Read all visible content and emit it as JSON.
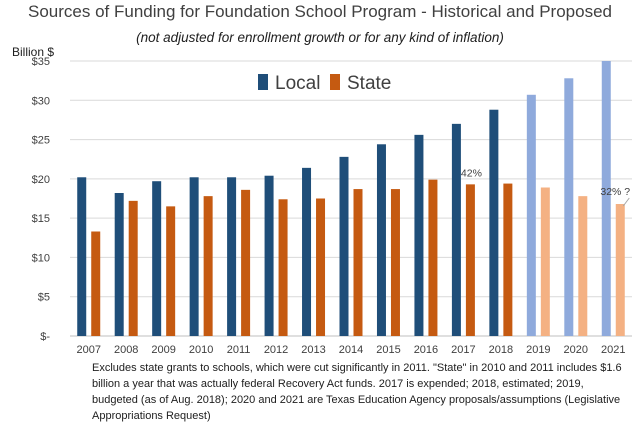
{
  "chart_data": {
    "type": "bar",
    "title": "Sources of Funding for Foundation School Program - Historical and Proposed",
    "subtitle": "(not adjusted for enrollment growth or for any kind of inflation)",
    "ylabel": "Billion $",
    "ylim": [
      0,
      35
    ],
    "yticks": [
      0,
      5,
      10,
      15,
      20,
      25,
      30,
      35
    ],
    "ytick_labels": [
      "$-",
      "$5",
      "$10",
      "$15",
      "$20",
      "$25",
      "$30",
      "$35"
    ],
    "categories": [
      "2007",
      "2008",
      "2009",
      "2010",
      "2011",
      "2012",
      "2013",
      "2014",
      "2015",
      "2016",
      "2017",
      "2018",
      "2019",
      "2020",
      "2021"
    ],
    "projected_from_index": 12,
    "series": [
      {
        "name": "Local",
        "color": "#1f4e79",
        "projected_color": "#8faadc",
        "values": [
          20.2,
          18.2,
          19.7,
          20.2,
          20.2,
          20.4,
          21.4,
          22.8,
          24.4,
          25.6,
          27.0,
          28.8,
          30.7,
          32.8,
          35.0
        ]
      },
      {
        "name": "State",
        "color": "#c55a11",
        "projected_color": "#f4b183",
        "values": [
          13.3,
          17.2,
          16.5,
          17.8,
          18.6,
          17.4,
          17.5,
          18.7,
          18.7,
          19.9,
          19.3,
          19.4,
          18.9,
          17.8,
          16.8
        ]
      }
    ],
    "legend_position": "top-center",
    "grid": true,
    "annotations": [
      {
        "text": "42%",
        "category_index": 10
      },
      {
        "text": "32% ?",
        "category_index": 14
      }
    ]
  },
  "note": "Excludes state grants to schools, which were cut significantly in 2011. \"State\" in 2010 and 2011 includes $1.6 billion a year that was actually federal Recovery Act funds. 2017 is expended; 2018, estimated; 2019, budgeted (as of Aug. 2018); 2020 and 2021 are Texas Education Agency proposals/assumptions (Legislative Appropriations Request)"
}
